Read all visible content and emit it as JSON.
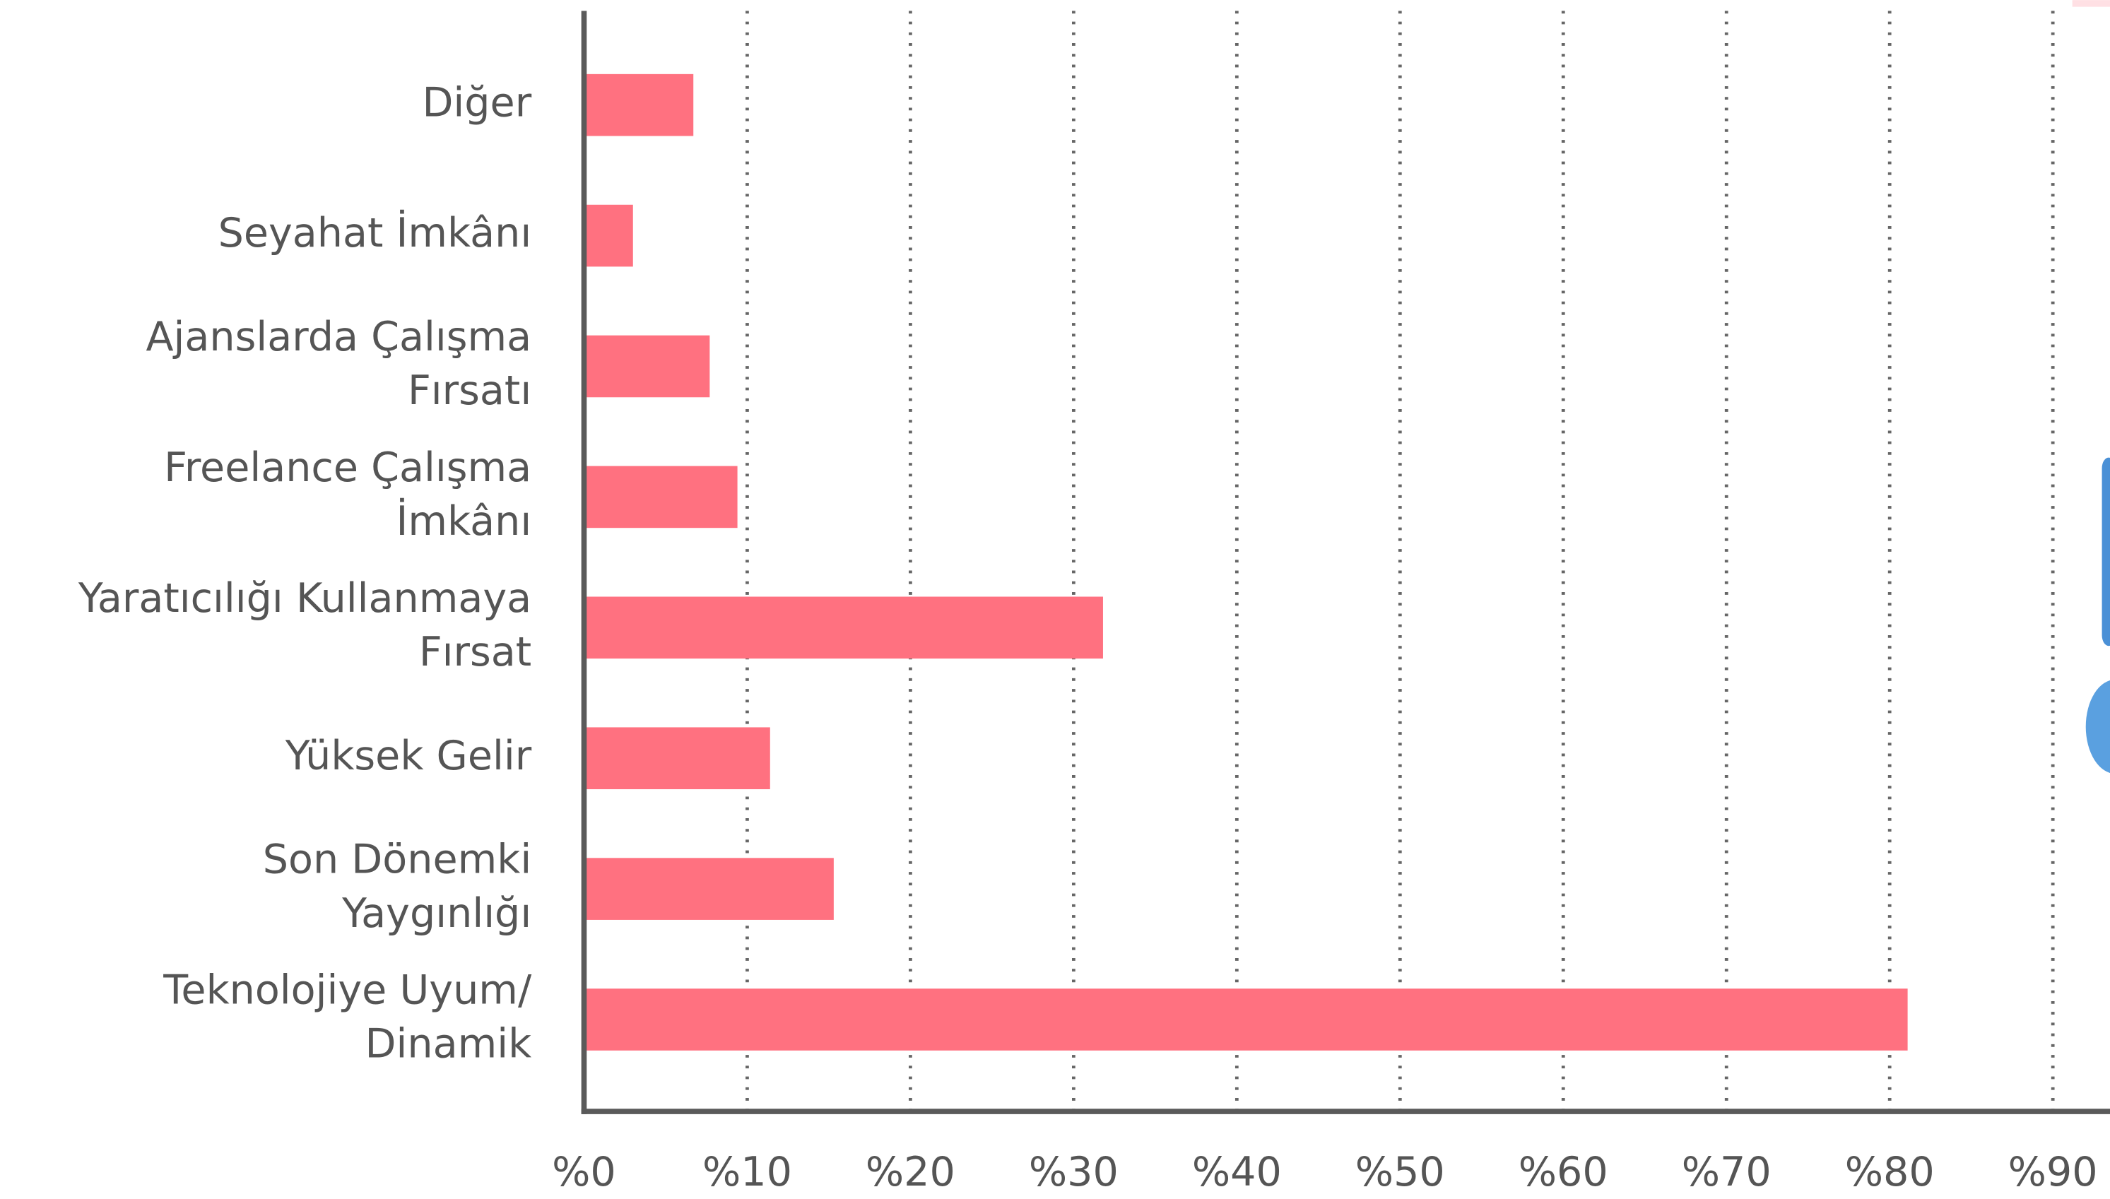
{
  "chart_data": {
    "type": "bar",
    "orientation": "horizontal",
    "categories": [
      [
        "Diğer"
      ],
      [
        "Seyahat İmkânı"
      ],
      [
        "Ajanslarda Çalışma",
        "Fırsatı"
      ],
      [
        "Freelance Çalışma",
        "İmkânı"
      ],
      [
        "Yaratıcılığı Kullanmaya",
        "Fırsat"
      ],
      [
        "Yüksek Gelir"
      ],
      [
        "Son Dönemki",
        "Yaygınlığı"
      ],
      [
        "Teknolojiye Uyum/",
        "Dinamik"
      ]
    ],
    "values": [
      6.7,
      3.0,
      7.7,
      9.4,
      31.8,
      11.4,
      15.3,
      81.1
    ],
    "color": "#ff7180",
    "xlim": [
      0,
      93.5
    ],
    "xticks": [
      {
        "value": 0,
        "label": "%0"
      },
      {
        "value": 10,
        "label": "%10"
      },
      {
        "value": 20,
        "label": "%20"
      },
      {
        "value": 30,
        "label": "%30"
      },
      {
        "value": 40,
        "label": "%40"
      },
      {
        "value": 50,
        "label": "%50"
      },
      {
        "value": 60,
        "label": "%60"
      },
      {
        "value": 70,
        "label": "%70"
      },
      {
        "value": 80,
        "label": "%80"
      },
      {
        "value": 90,
        "label": "%90"
      }
    ],
    "grid": true
  }
}
